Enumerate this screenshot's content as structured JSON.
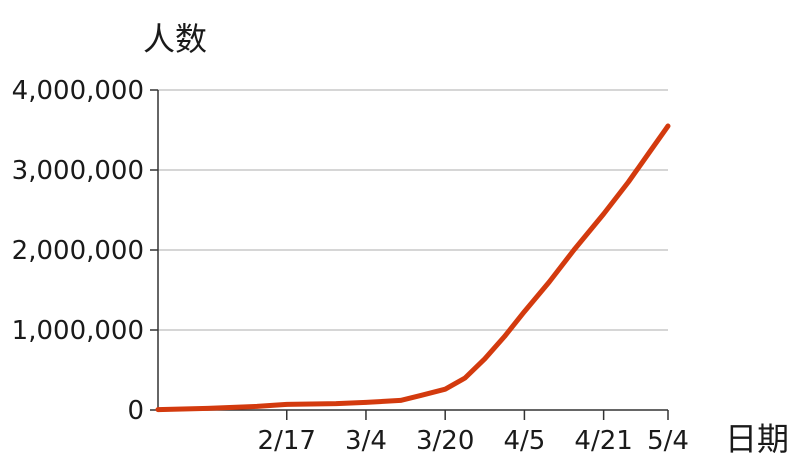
{
  "chart_data": {
    "type": "line",
    "title": "",
    "ylabel": "人数",
    "xlabel": "日期",
    "ylim": [
      0,
      4000000
    ],
    "y_ticks": [
      {
        "value": 0,
        "label": "0"
      },
      {
        "value": 1000000,
        "label": "1,000,000"
      },
      {
        "value": 2000000,
        "label": "2,000,000"
      },
      {
        "value": 3000000,
        "label": "3,000,000"
      },
      {
        "value": 4000000,
        "label": "4,000,000"
      }
    ],
    "x_ticks": [
      "2/17",
      "3/4",
      "3/20",
      "4/5",
      "4/21",
      "5/4"
    ],
    "grid": true,
    "series": [
      {
        "color": "#d33a0e",
        "x": [
          "1/22",
          "2/1",
          "2/11",
          "2/17",
          "2/27",
          "3/4",
          "3/11",
          "3/15",
          "3/20",
          "3/24",
          "3/28",
          "4/1",
          "4/5",
          "4/10",
          "4/15",
          "4/19",
          "4/21",
          "4/26",
          "4/30",
          "5/4"
        ],
        "values": [
          5000,
          20000,
          45000,
          70000,
          80000,
          95000,
          120000,
          180000,
          260000,
          400000,
          640000,
          920000,
          1230000,
          1600000,
          2000000,
          2300000,
          2450000,
          2850000,
          3200000,
          3550000
        ]
      }
    ]
  }
}
